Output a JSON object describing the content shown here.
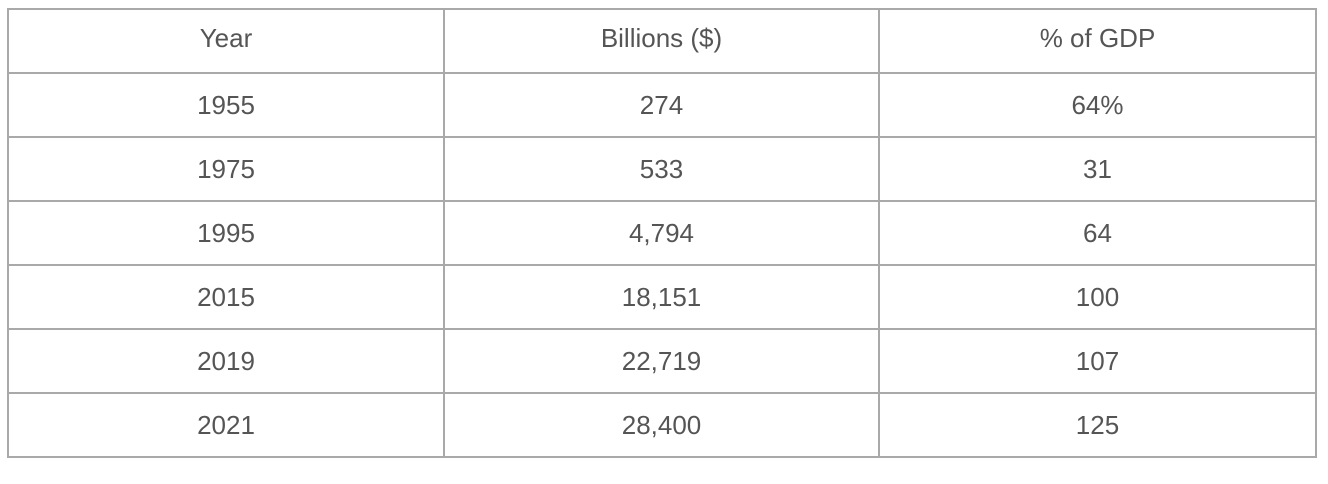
{
  "table": {
    "headers": [
      "Year",
      "Billions ($)",
      "% of GDP"
    ],
    "rows": [
      [
        "1955",
        "274",
        "64%"
      ],
      [
        "1975",
        "533",
        "31"
      ],
      [
        "1995",
        "4,794",
        "64"
      ],
      [
        "2015",
        "18,151",
        "100"
      ],
      [
        "2019",
        "22,719",
        "107"
      ],
      [
        "2021",
        "28,400",
        "125"
      ]
    ]
  },
  "colors": {
    "border": "#a9a9a9",
    "text": "#555555",
    "background": "#ffffff"
  }
}
